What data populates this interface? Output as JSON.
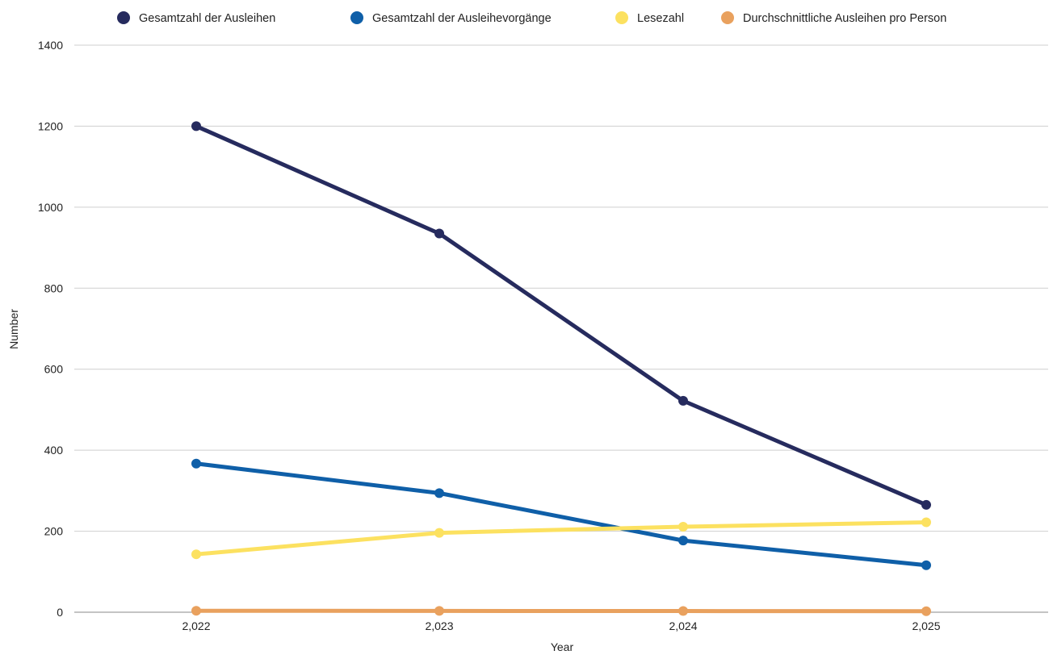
{
  "chart_data": {
    "type": "line",
    "x": [
      "2,022",
      "2,023",
      "2,024",
      "2,025"
    ],
    "xlabel": "Year",
    "ylabel": "Number",
    "ylim": [
      0,
      1400
    ],
    "yticks": [
      0,
      200,
      400,
      600,
      800,
      1000,
      1200,
      1400
    ],
    "grid": true,
    "legend": "top",
    "series": [
      {
        "name": "Gesamtzahl der Ausleihen",
        "color": "#262B5E",
        "values": [
          1200,
          935,
          522,
          265
        ]
      },
      {
        "name": "Gesamtzahl der Ausleihevorgänge",
        "color": "#0F5FA8",
        "values": [
          367,
          294,
          177,
          116
        ]
      },
      {
        "name": "Lesezahl",
        "color": "#FCE160",
        "values": [
          143,
          196,
          211,
          222
        ]
      },
      {
        "name": "Durchschnittliche Ausleihen pro Person",
        "color": "#E9A15E",
        "values": [
          3.5,
          3.2,
          2.9,
          2.4
        ]
      }
    ]
  }
}
